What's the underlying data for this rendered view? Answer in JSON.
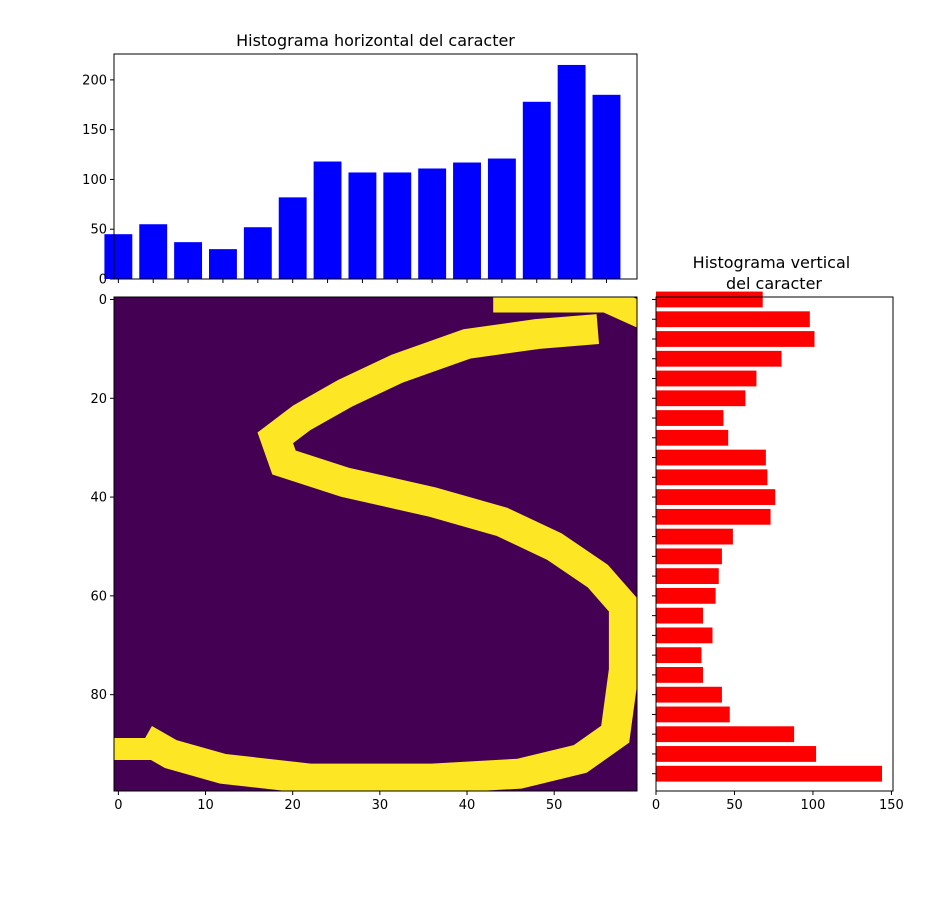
{
  "chart_data": [
    {
      "type": "bar",
      "title": "Histograma horizontal del caracter",
      "x": [
        0,
        4,
        8,
        12,
        16,
        20,
        24,
        28,
        32,
        36,
        40,
        44,
        48,
        52,
        56
      ],
      "values": [
        45,
        55,
        37,
        30,
        52,
        82,
        118,
        107,
        107,
        111,
        117,
        121,
        178,
        215,
        185
      ],
      "xlim": [
        -0.5,
        59.5
      ],
      "ylim": [
        0,
        226
      ],
      "yticks": [
        0,
        50,
        100,
        150,
        200
      ],
      "color": "#0000ff",
      "grid": false
    },
    {
      "type": "heatmap",
      "xlim": [
        -0.5,
        59.5
      ],
      "ylim": [
        99.5,
        -0.5
      ],
      "xticks": [
        0,
        10,
        20,
        30,
        40,
        50
      ],
      "yticks": [
        0,
        20,
        40,
        60,
        80
      ],
      "colors": {
        "background": "#440154",
        "stroke": "#fde725"
      },
      "grid": false
    },
    {
      "type": "bar",
      "orientation": "horizontal",
      "title": "Histograma vertical\ndel caracter",
      "y": [
        0,
        4,
        8,
        12,
        16,
        20,
        24,
        28,
        32,
        36,
        40,
        44,
        48,
        52,
        56,
        60,
        64,
        68,
        72,
        76,
        80,
        84,
        88,
        92,
        96
      ],
      "values": [
        68,
        98,
        101,
        80,
        64,
        57,
        43,
        46,
        70,
        71,
        76,
        73,
        49,
        42,
        40,
        38,
        30,
        36,
        29,
        30,
        42,
        47,
        88,
        102,
        144
      ],
      "xlim": [
        0,
        151
      ],
      "xticks": [
        0,
        50,
        100,
        150
      ],
      "color": "#ff0000",
      "grid": false
    }
  ]
}
